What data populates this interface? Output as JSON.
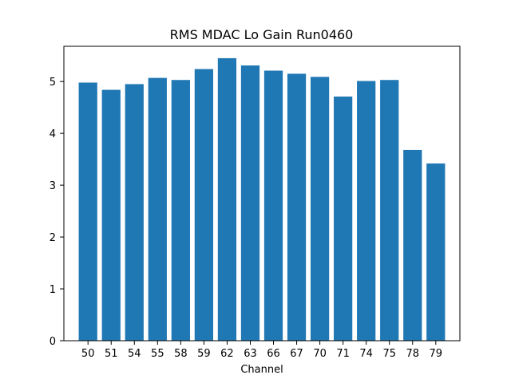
{
  "chart_data": {
    "type": "bar",
    "title": "RMS MDAC Lo Gain Run0460",
    "xlabel": "Channel",
    "ylabel": "",
    "categories": [
      "50",
      "51",
      "54",
      "55",
      "58",
      "59",
      "62",
      "63",
      "66",
      "67",
      "70",
      "71",
      "74",
      "75",
      "78",
      "79"
    ],
    "values": [
      4.98,
      4.84,
      4.95,
      5.07,
      5.03,
      5.24,
      5.45,
      5.31,
      5.21,
      5.15,
      5.09,
      4.71,
      5.01,
      5.03,
      3.68,
      3.42
    ],
    "ylim": [
      0,
      5.68
    ],
    "yticks": [
      0,
      1,
      2,
      3,
      4,
      5
    ],
    "grid": false,
    "bar_color": "#1f77b4"
  }
}
